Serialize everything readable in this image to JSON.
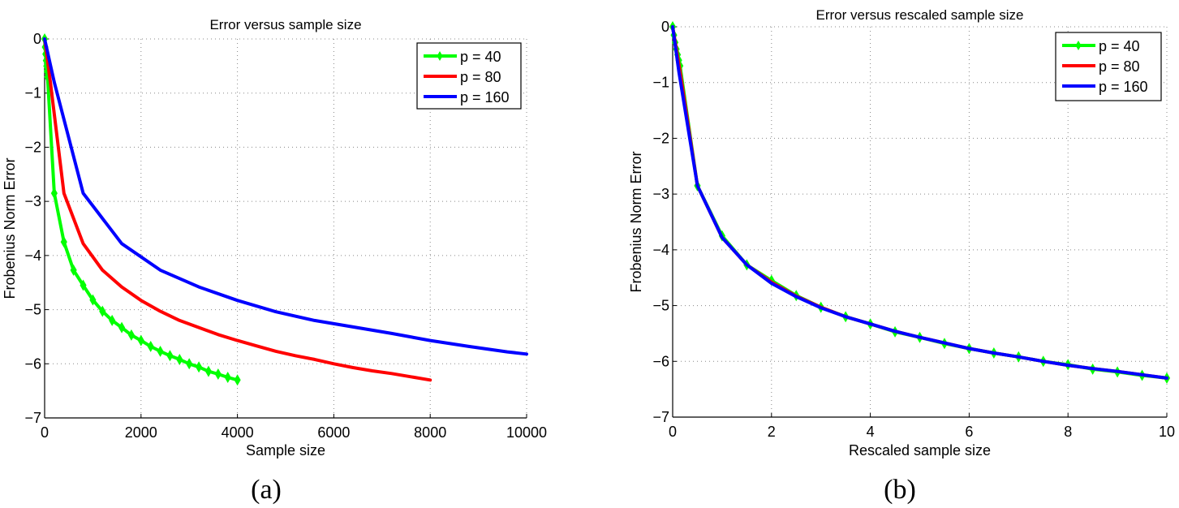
{
  "colors": {
    "p40": "#00ff00",
    "p80": "#ff0000",
    "p160": "#0000ff",
    "axis": "#000000",
    "grid": "#888888"
  },
  "captions": {
    "a": "(a)",
    "b": "(b)"
  },
  "chart_data": [
    {
      "type": "line",
      "id": "a",
      "title": "Error versus sample size",
      "xlabel": "Sample size",
      "ylabel": "Frobenius Norm Error",
      "xlim": [
        0,
        10000
      ],
      "ylim": [
        -7,
        0
      ],
      "xticks": [
        0,
        2000,
        4000,
        6000,
        8000,
        10000
      ],
      "yticks": [
        0,
        -1,
        -2,
        -3,
        -4,
        -5,
        -6,
        -7
      ],
      "grid": true,
      "legend_position": "upper right",
      "series": [
        {
          "name": "p = 40",
          "color": "#00ff00",
          "marker": "diamond",
          "x": [
            0,
            10,
            20,
            30,
            40,
            50,
            60,
            200,
            400,
            600,
            800,
            1000,
            1200,
            1400,
            1600,
            1800,
            2000,
            2200,
            2400,
            2600,
            2800,
            3000,
            3200,
            3400,
            3600,
            3800,
            4000
          ],
          "y": [
            0,
            -0.15,
            -0.28,
            -0.4,
            -0.5,
            -0.6,
            -0.7,
            -2.85,
            -3.75,
            -4.27,
            -4.55,
            -4.82,
            -5.03,
            -5.2,
            -5.33,
            -5.47,
            -5.57,
            -5.68,
            -5.77,
            -5.85,
            -5.92,
            -6.0,
            -6.06,
            -6.14,
            -6.19,
            -6.25,
            -6.3
          ]
        },
        {
          "name": "p = 80",
          "color": "#ff0000",
          "marker": "none",
          "x": [
            0,
            120,
            400,
            800,
            1200,
            1600,
            2000,
            2400,
            2800,
            3200,
            3600,
            4000,
            4400,
            4800,
            5200,
            5600,
            6000,
            6400,
            6800,
            7200,
            7600,
            8000
          ],
          "y": [
            0,
            -0.8,
            -2.85,
            -3.78,
            -4.27,
            -4.58,
            -4.83,
            -5.03,
            -5.2,
            -5.33,
            -5.46,
            -5.57,
            -5.67,
            -5.77,
            -5.85,
            -5.92,
            -6.0,
            -6.07,
            -6.13,
            -6.18,
            -6.24,
            -6.3
          ]
        },
        {
          "name": "p = 160",
          "color": "#0000ff",
          "marker": "none",
          "x": [
            0,
            200,
            800,
            1600,
            2400,
            3200,
            4000,
            4800,
            5600,
            6400,
            7200,
            8000,
            8800,
            9600,
            10000
          ],
          "y": [
            0,
            -0.8,
            -2.85,
            -3.78,
            -4.27,
            -4.58,
            -4.83,
            -5.04,
            -5.2,
            -5.32,
            -5.44,
            -5.57,
            -5.68,
            -5.78,
            -5.82
          ]
        }
      ]
    },
    {
      "type": "line",
      "id": "b",
      "title": "Error versus rescaled sample size",
      "xlabel": "Rescaled sample size",
      "ylabel": "Frobenius Norm Error",
      "xlim": [
        0,
        10
      ],
      "ylim": [
        -7,
        0
      ],
      "xticks": [
        0,
        2,
        4,
        6,
        8,
        10
      ],
      "yticks": [
        0,
        -1,
        -2,
        -3,
        -4,
        -5,
        -6,
        -7
      ],
      "grid": true,
      "legend_position": "upper right",
      "series": [
        {
          "name": "p = 40",
          "color": "#00ff00",
          "marker": "diamond",
          "x": [
            0,
            0.025,
            0.05,
            0.075,
            0.1,
            0.125,
            0.15,
            0.5,
            1.0,
            1.5,
            2.0,
            2.5,
            3.0,
            3.5,
            4.0,
            4.5,
            5.0,
            5.5,
            6.0,
            6.5,
            7.0,
            7.5,
            8.0,
            8.5,
            9.0,
            9.5,
            10.0
          ],
          "y": [
            0,
            -0.15,
            -0.28,
            -0.4,
            -0.5,
            -0.6,
            -0.7,
            -2.85,
            -3.75,
            -4.27,
            -4.55,
            -4.82,
            -5.03,
            -5.2,
            -5.33,
            -5.47,
            -5.57,
            -5.68,
            -5.77,
            -5.85,
            -5.92,
            -6.0,
            -6.06,
            -6.14,
            -6.19,
            -6.25,
            -6.3
          ]
        },
        {
          "name": "p = 80",
          "color": "#ff0000",
          "marker": "none",
          "x": [
            0,
            0.15,
            0.5,
            1.0,
            1.5,
            2.0,
            2.5,
            3.0,
            3.5,
            4.0,
            4.5,
            5.0,
            5.5,
            6.0,
            6.5,
            7.0,
            7.5,
            8.0,
            8.5,
            9.0,
            9.5,
            10.0
          ],
          "y": [
            0,
            -0.8,
            -2.85,
            -3.78,
            -4.27,
            -4.58,
            -4.83,
            -5.03,
            -5.2,
            -5.33,
            -5.46,
            -5.57,
            -5.67,
            -5.77,
            -5.85,
            -5.92,
            -6.0,
            -6.07,
            -6.13,
            -6.18,
            -6.24,
            -6.3
          ]
        },
        {
          "name": "p = 160",
          "color": "#0000ff",
          "marker": "none",
          "x": [
            0,
            0.125,
            0.5,
            1.0,
            1.5,
            2.0,
            2.5,
            3.0,
            3.5,
            4.0,
            4.5,
            5.0,
            5.5,
            6.0,
            6.5,
            7.0,
            7.5,
            8.0,
            8.5,
            9.0,
            9.5,
            10.0
          ],
          "y": [
            0,
            -0.8,
            -2.85,
            -3.78,
            -4.27,
            -4.6,
            -4.84,
            -5.04,
            -5.2,
            -5.33,
            -5.46,
            -5.57,
            -5.67,
            -5.77,
            -5.85,
            -5.92,
            -6.0,
            -6.07,
            -6.13,
            -6.18,
            -6.24,
            -6.3
          ]
        }
      ]
    }
  ]
}
